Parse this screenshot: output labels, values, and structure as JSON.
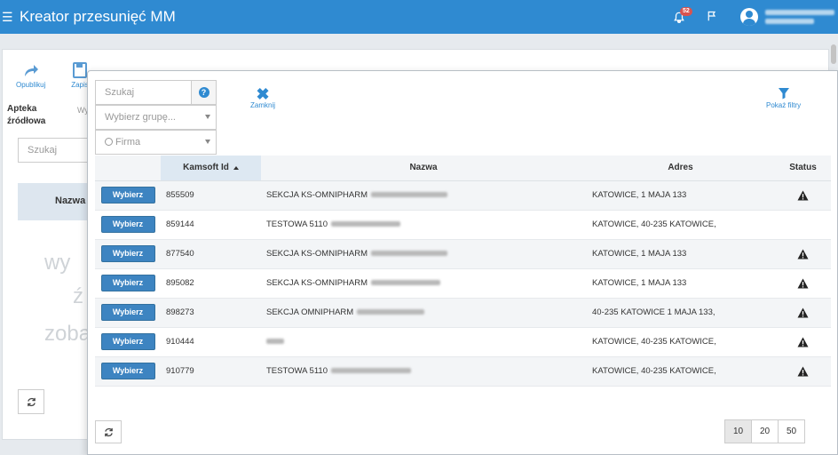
{
  "header": {
    "title": "Kreator przesunięć MM",
    "notification_count": "52"
  },
  "background": {
    "toolbar": {
      "publish": "Opublikuj",
      "save": "Zapis"
    },
    "source_label_1": "Apteka",
    "source_label_2": "źródłowa",
    "small_label": "Wy",
    "search_placeholder": "Szukaj",
    "table_header_name": "Nazwa",
    "ghost_1": "wy",
    "ghost_2": "ź",
    "ghost_3": "zoba"
  },
  "modal": {
    "search_placeholder": "Szukaj",
    "group_placeholder": "Wybierz grupę...",
    "firm_placeholder": "Firma",
    "close_label": "Zamknij",
    "filter_label": "Pokaż filtry",
    "columns": {
      "kamsoft_id": "Kamsoft Id",
      "name": "Nazwa",
      "address": "Adres",
      "status": "Status"
    },
    "select_label": "Wybierz",
    "rows": [
      {
        "id": "855509",
        "name": "SEKCJA KS-OMNIPHARM",
        "address": "KATOWICE, 1 MAJA 133",
        "warning": true
      },
      {
        "id": "859144",
        "name": "TESTOWA 5110",
        "address": "KATOWICE, 40-235 KATOWICE,",
        "warning": false
      },
      {
        "id": "877540",
        "name": "SEKCJA KS-OMNIPHARM",
        "address": "KATOWICE, 1 MAJA 133",
        "warning": true
      },
      {
        "id": "895082",
        "name": "SEKCJA KS-OMNIPHARM",
        "address": "KATOWICE, 1 MAJA 133",
        "warning": true
      },
      {
        "id": "898273",
        "name": "SEKCJA OMNIPHARM",
        "address": "40-235 KATOWICE 1 MAJA 133,",
        "warning": true
      },
      {
        "id": "910444",
        "name": "",
        "address": "KATOWICE, 40-235 KATOWICE,",
        "warning": true
      },
      {
        "id": "910779",
        "name": "TESTOWA 5110",
        "address": "KATOWICE, 40-235 KATOWICE,",
        "warning": true
      }
    ],
    "page_sizes": [
      "10",
      "20",
      "50"
    ],
    "active_page_size": "10"
  }
}
